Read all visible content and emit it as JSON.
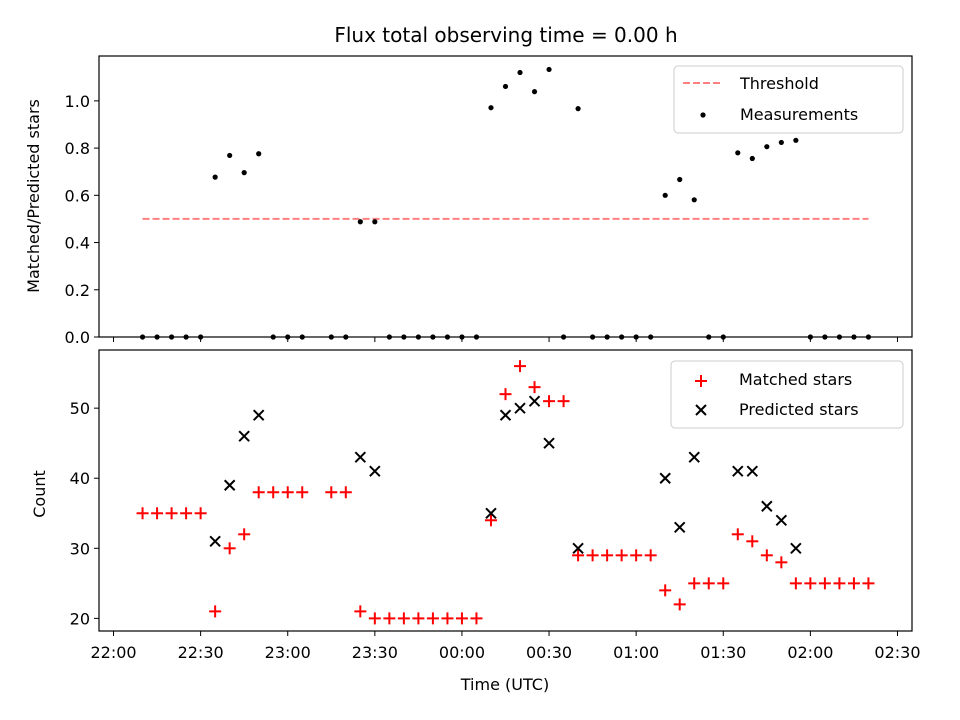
{
  "chart_data": [
    {
      "type": "scatter",
      "title": "Flux total observing time = 0.00 h",
      "xlabel": "",
      "ylabel": "Matched/Predicted stars",
      "ylim": [
        0,
        1.19
      ],
      "yticks": [
        "0.0",
        "0.2",
        "0.4",
        "0.6",
        "0.8",
        "1.0"
      ],
      "ytick_values": [
        0,
        0.2,
        0.4,
        0.6,
        0.8,
        1.0
      ],
      "xlim_minutes_from_22h": [
        -5,
        275
      ],
      "legend_position": "top-right",
      "threshold": {
        "name": "Threshold",
        "value": 0.5,
        "x_range_minutes_from_22h": [
          10,
          260
        ],
        "color": "#ff8080"
      },
      "series": [
        {
          "name": "Measurements",
          "color": "#000000",
          "marker": "dot",
          "points": [
            {
              "x": "22:10",
              "y": 0
            },
            {
              "x": "22:15",
              "y": 0
            },
            {
              "x": "22:20",
              "y": 0
            },
            {
              "x": "22:25",
              "y": 0
            },
            {
              "x": "22:30",
              "y": 0
            },
            {
              "x": "22:35",
              "y": 0.677
            },
            {
              "x": "22:40",
              "y": 0.769
            },
            {
              "x": "22:45",
              "y": 0.696
            },
            {
              "x": "22:50",
              "y": 0.776
            },
            {
              "x": "22:55",
              "y": 0
            },
            {
              "x": "23:00",
              "y": 0
            },
            {
              "x": "23:05",
              "y": 0
            },
            {
              "x": "23:15",
              "y": 0
            },
            {
              "x": "23:20",
              "y": 0
            },
            {
              "x": "23:25",
              "y": 0.488
            },
            {
              "x": "23:30",
              "y": 0.488
            },
            {
              "x": "23:35",
              "y": 0
            },
            {
              "x": "23:40",
              "y": 0
            },
            {
              "x": "23:45",
              "y": 0
            },
            {
              "x": "23:50",
              "y": 0
            },
            {
              "x": "23:55",
              "y": 0
            },
            {
              "x": "00:00",
              "y": 0
            },
            {
              "x": "00:05",
              "y": 0
            },
            {
              "x": "00:10",
              "y": 0.971
            },
            {
              "x": "00:15",
              "y": 1.061
            },
            {
              "x": "00:20",
              "y": 1.12
            },
            {
              "x": "00:25",
              "y": 1.039
            },
            {
              "x": "00:30",
              "y": 1.133
            },
            {
              "x": "00:35",
              "y": 0
            },
            {
              "x": "00:40",
              "y": 0.967
            },
            {
              "x": "00:45",
              "y": 0
            },
            {
              "x": "00:50",
              "y": 0
            },
            {
              "x": "00:55",
              "y": 0
            },
            {
              "x": "01:00",
              "y": 0
            },
            {
              "x": "01:05",
              "y": 0
            },
            {
              "x": "01:10",
              "y": 0.6
            },
            {
              "x": "01:15",
              "y": 0.667
            },
            {
              "x": "01:20",
              "y": 0.581
            },
            {
              "x": "01:25",
              "y": 0
            },
            {
              "x": "01:30",
              "y": 0
            },
            {
              "x": "01:35",
              "y": 0.78
            },
            {
              "x": "01:40",
              "y": 0.756
            },
            {
              "x": "01:45",
              "y": 0.806
            },
            {
              "x": "01:50",
              "y": 0.824
            },
            {
              "x": "01:55",
              "y": 0.833
            },
            {
              "x": "02:00",
              "y": 0
            },
            {
              "x": "02:05",
              "y": 0
            },
            {
              "x": "02:10",
              "y": 0
            },
            {
              "x": "02:15",
              "y": 0
            },
            {
              "x": "02:20",
              "y": 0
            }
          ]
        }
      ],
      "legend": [
        "Threshold",
        "Measurements"
      ]
    },
    {
      "type": "scatter",
      "title": "",
      "xlabel": "Time (UTC)",
      "ylabel": "Count",
      "ylim": [
        18.2,
        58.3
      ],
      "yticks": [
        "20",
        "30",
        "40",
        "50"
      ],
      "ytick_values": [
        20,
        30,
        40,
        50
      ],
      "xticks": [
        "22:00",
        "22:30",
        "23:00",
        "23:30",
        "00:00",
        "00:30",
        "01:00",
        "01:30",
        "02:00",
        "02:30"
      ],
      "xlim_minutes_from_22h": [
        -5,
        275
      ],
      "legend_position": "top-right",
      "series": [
        {
          "name": "Matched stars",
          "color": "#ff0000",
          "marker": "plus",
          "points": [
            {
              "x": "22:10",
              "y": 35
            },
            {
              "x": "22:15",
              "y": 35
            },
            {
              "x": "22:20",
              "y": 35
            },
            {
              "x": "22:25",
              "y": 35
            },
            {
              "x": "22:30",
              "y": 35
            },
            {
              "x": "22:35",
              "y": 21
            },
            {
              "x": "22:40",
              "y": 30
            },
            {
              "x": "22:45",
              "y": 32
            },
            {
              "x": "22:50",
              "y": 38
            },
            {
              "x": "22:55",
              "y": 38
            },
            {
              "x": "23:00",
              "y": 38
            },
            {
              "x": "23:05",
              "y": 38
            },
            {
              "x": "23:15",
              "y": 38
            },
            {
              "x": "23:20",
              "y": 38
            },
            {
              "x": "23:25",
              "y": 21
            },
            {
              "x": "23:30",
              "y": 20
            },
            {
              "x": "23:35",
              "y": 20
            },
            {
              "x": "23:40",
              "y": 20
            },
            {
              "x": "23:45",
              "y": 20
            },
            {
              "x": "23:50",
              "y": 20
            },
            {
              "x": "23:55",
              "y": 20
            },
            {
              "x": "00:00",
              "y": 20
            },
            {
              "x": "00:05",
              "y": 20
            },
            {
              "x": "00:10",
              "y": 34
            },
            {
              "x": "00:15",
              "y": 52
            },
            {
              "x": "00:20",
              "y": 56
            },
            {
              "x": "00:25",
              "y": 53
            },
            {
              "x": "00:30",
              "y": 51
            },
            {
              "x": "00:35",
              "y": 51
            },
            {
              "x": "00:40",
              "y": 29
            },
            {
              "x": "00:45",
              "y": 29
            },
            {
              "x": "00:50",
              "y": 29
            },
            {
              "x": "00:55",
              "y": 29
            },
            {
              "x": "01:00",
              "y": 29
            },
            {
              "x": "01:05",
              "y": 29
            },
            {
              "x": "01:10",
              "y": 24
            },
            {
              "x": "01:15",
              "y": 22
            },
            {
              "x": "01:20",
              "y": 25
            },
            {
              "x": "01:25",
              "y": 25
            },
            {
              "x": "01:30",
              "y": 25
            },
            {
              "x": "01:35",
              "y": 32
            },
            {
              "x": "01:40",
              "y": 31
            },
            {
              "x": "01:45",
              "y": 29
            },
            {
              "x": "01:50",
              "y": 28
            },
            {
              "x": "01:55",
              "y": 25
            },
            {
              "x": "02:00",
              "y": 25
            },
            {
              "x": "02:05",
              "y": 25
            },
            {
              "x": "02:10",
              "y": 25
            },
            {
              "x": "02:15",
              "y": 25
            },
            {
              "x": "02:20",
              "y": 25
            }
          ]
        },
        {
          "name": "Predicted stars",
          "color": "#000000",
          "marker": "x",
          "points": [
            {
              "x": "22:35",
              "y": 31
            },
            {
              "x": "22:40",
              "y": 39
            },
            {
              "x": "22:45",
              "y": 46
            },
            {
              "x": "22:50",
              "y": 49
            },
            {
              "x": "23:25",
              "y": 43
            },
            {
              "x": "23:30",
              "y": 41
            },
            {
              "x": "00:10",
              "y": 35
            },
            {
              "x": "00:15",
              "y": 49
            },
            {
              "x": "00:20",
              "y": 50
            },
            {
              "x": "00:25",
              "y": 51
            },
            {
              "x": "00:30",
              "y": 45
            },
            {
              "x": "00:40",
              "y": 30
            },
            {
              "x": "01:10",
              "y": 40
            },
            {
              "x": "01:15",
              "y": 33
            },
            {
              "x": "01:20",
              "y": 43
            },
            {
              "x": "01:35",
              "y": 41
            },
            {
              "x": "01:40",
              "y": 41
            },
            {
              "x": "01:45",
              "y": 36
            },
            {
              "x": "01:50",
              "y": 34
            },
            {
              "x": "01:55",
              "y": 30
            }
          ]
        }
      ],
      "legend": [
        "Matched stars",
        "Predicted stars"
      ]
    }
  ]
}
